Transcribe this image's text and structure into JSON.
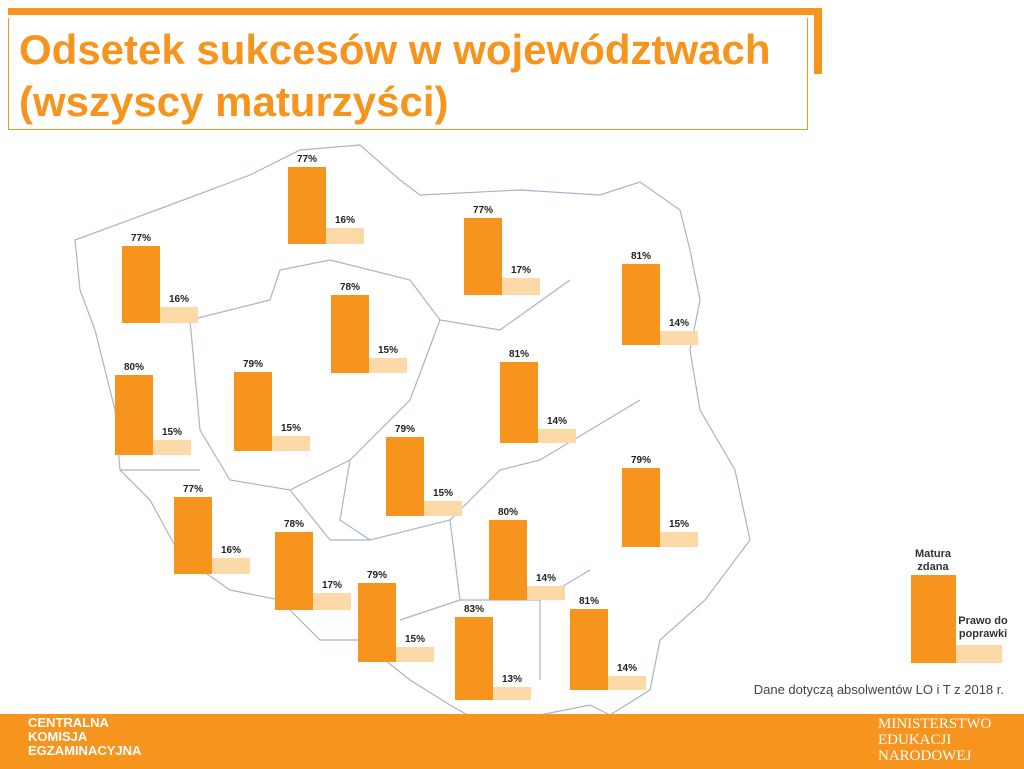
{
  "chart_data": {
    "type": "bar",
    "title": "Odsetek sukcesów w województwach (wszyscy maturzyści)",
    "series": [
      {
        "name": "Matura zdana",
        "color": "#f7941d",
        "values": [
          77,
          77,
          77,
          81,
          78,
          80,
          79,
          81,
          79,
          79,
          77,
          78,
          80,
          79,
          83,
          81
        ],
        "value_labels": [
          "77%",
          "77%",
          "77%",
          "81%",
          "78%",
          "80%",
          "79%",
          "81%",
          "79%",
          "79%",
          "77%",
          "78%",
          "80%",
          "79%",
          "83%",
          "81%"
        ]
      },
      {
        "name": "Prawo do poprawki",
        "color": "#fdd9a8",
        "values": [
          16,
          16,
          17,
          14,
          15,
          15,
          15,
          14,
          15,
          15,
          16,
          17,
          14,
          15,
          13,
          14
        ],
        "value_labels": [
          "16%",
          "16%",
          "17%",
          "14%",
          "15%",
          "15%",
          "15%",
          "14%",
          "15%",
          "15%",
          "16%",
          "17%",
          "14%",
          "15%",
          "13%",
          "14%"
        ]
      }
    ],
    "note": "Dane dotyczą absolwentów LO i T z 2018 r."
  },
  "footer": {
    "left": [
      "CENTRALNA",
      "KOMISJA",
      "EGZAMINACYJNA"
    ],
    "right": [
      "MINISTERSTWO",
      "EDUKACJI",
      "NARODOWEJ"
    ]
  }
}
